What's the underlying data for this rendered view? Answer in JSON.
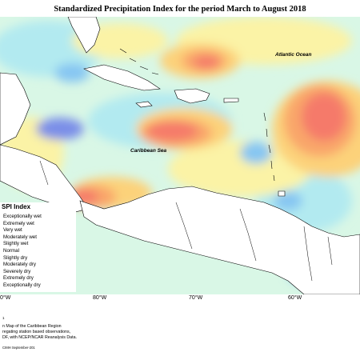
{
  "title": "Standardized Precipitation Index for the period March to August 2018",
  "map": {
    "labels": {
      "atlantic": "Atlantic Ocean",
      "caribbean": "Caribbean Sea"
    },
    "axis_ticks": [
      "0°W",
      "80°W",
      "70°W",
      "60°W"
    ]
  },
  "legend": {
    "title": "SPI Index",
    "items": [
      {
        "label": "Exceptionally wet",
        "color": "#5a4fc4"
      },
      {
        "label": "Extremely wet",
        "color": "#7a8ee8"
      },
      {
        "label": "Very wet",
        "color": "#86c6f2"
      },
      {
        "label": "Moderately wet",
        "color": "#b2eaf0"
      },
      {
        "label": "Slightly wet",
        "color": "#d9f7e6"
      },
      {
        "label": "Normal",
        "color": "#f0fbd8"
      },
      {
        "label": "Slightly dry",
        "color": "#fbf3a6"
      },
      {
        "label": "Moderately dry",
        "color": "#fcd27a"
      },
      {
        "label": "Severely dry",
        "color": "#f9a66a"
      },
      {
        "label": "Extremely dry",
        "color": "#f57a6a"
      },
      {
        "label": "Exceptionally dry",
        "color": "#e3484f"
      }
    ]
  },
  "footer": {
    "marker": "1",
    "lines": [
      "n Map of the Caribbean Region",
      "regating station based observations,",
      "DF, with NCEP/NCAR Reanalysis Data."
    ],
    "credit": "CIMH September-201"
  }
}
